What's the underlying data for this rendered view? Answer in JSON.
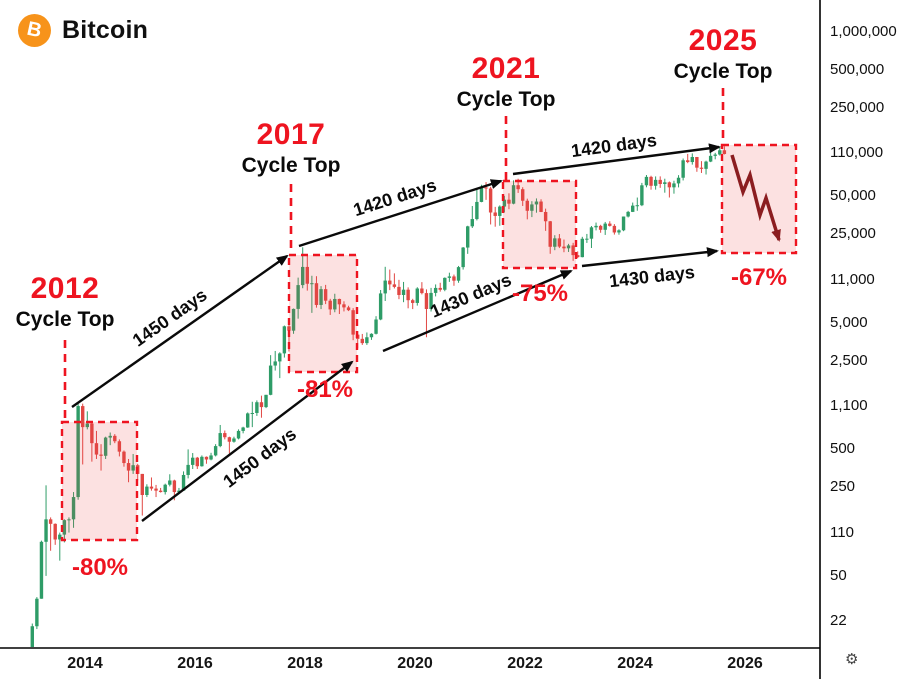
{
  "header": {
    "title": "Bitcoin"
  },
  "icons": {
    "bitcoin_logo_glyph": "B",
    "axis_settings_glyph": "⚙"
  },
  "colors": {
    "bitcoin_orange": "#f7931a",
    "up": "#2e9c67",
    "down": "#e14743",
    "annotation_red": "#ee1420",
    "box_fill": "rgba(239,70,70,0.16)",
    "zigzag": "#8b1d20",
    "axis_text": "#101010"
  },
  "annotations": {
    "cycles": [
      {
        "year": "2012",
        "label": "Cycle Top",
        "drawdown": "-80%"
      },
      {
        "year": "2017",
        "label": "Cycle Top",
        "drawdown": "-81%"
      },
      {
        "year": "2021",
        "label": "Cycle Top",
        "drawdown": "-75%"
      },
      {
        "year": "2025",
        "label": "Cycle Top",
        "drawdown": "-67%"
      }
    ],
    "top_spans": [
      "1450 days",
      "1420 days",
      "1420 days"
    ],
    "bottom_spans": [
      "1450 days",
      "1430 days",
      "1430 days"
    ]
  },
  "y_axis": {
    "labels": [
      "1,000,000",
      "500,000",
      "250,000",
      "110,000",
      "50,000",
      "25,000",
      "11,000",
      "5,000",
      "2,500",
      "1,100",
      "500",
      "250",
      "110",
      "50",
      "22"
    ]
  },
  "x_axis": {
    "labels": [
      "2014",
      "2016",
      "2018",
      "2020",
      "2022",
      "2024",
      "2026"
    ]
  },
  "chart_data": {
    "type": "candlestick",
    "title": "Bitcoin",
    "price_scale": "logarithmic",
    "interval": "monthly",
    "start_year": 2013,
    "x_tick_years": [
      2014,
      2016,
      2018,
      2020,
      2022,
      2024,
      2026
    ],
    "y_tick_prices": [
      22,
      50,
      110,
      250,
      500,
      1100,
      2500,
      5000,
      11000,
      25000,
      50000,
      110000,
      250000,
      500000,
      1000000
    ],
    "cycle_analysis": {
      "tops": [
        "2012",
        "2017",
        "2021",
        "2025"
      ],
      "drawdowns_pct": [
        -80,
        -81,
        -75,
        -67
      ],
      "top_to_top_days": [
        1450,
        1420,
        1420
      ],
      "bottom_to_bottom_days": [
        1450,
        1430,
        1430
      ]
    },
    "candles": [
      [
        13,
        21,
        13,
        20
      ],
      [
        20,
        34,
        19,
        33
      ],
      [
        33,
        95,
        33,
        93
      ],
      [
        93,
        260,
        50,
        140
      ],
      [
        140,
        145,
        79,
        129
      ],
      [
        129,
        130,
        88,
        97
      ],
      [
        97,
        110,
        66,
        106
      ],
      [
        106,
        140,
        92,
        138
      ],
      [
        138,
        145,
        110,
        140
      ],
      [
        140,
        230,
        120,
        210
      ],
      [
        210,
        1150,
        200,
        1100
      ],
      [
        1100,
        1150,
        380,
        750
      ],
      [
        750,
        1000,
        720,
        800
      ],
      [
        800,
        830,
        400,
        560
      ],
      [
        560,
        700,
        420,
        455
      ],
      [
        455,
        550,
        340,
        445
      ],
      [
        445,
        630,
        420,
        620
      ],
      [
        620,
        680,
        540,
        640
      ],
      [
        640,
        660,
        560,
        580
      ],
      [
        580,
        600,
        440,
        480
      ],
      [
        480,
        490,
        365,
        390
      ],
      [
        390,
        420,
        275,
        340
      ],
      [
        340,
        460,
        320,
        375
      ],
      [
        375,
        385,
        285,
        320
      ],
      [
        320,
        320,
        150,
        218
      ],
      [
        218,
        265,
        210,
        254
      ],
      [
        254,
        300,
        236,
        245
      ],
      [
        245,
        262,
        210,
        236
      ],
      [
        236,
        248,
        228,
        230
      ],
      [
        230,
        268,
        220,
        263
      ],
      [
        263,
        318,
        255,
        284
      ],
      [
        284,
        288,
        198,
        230
      ],
      [
        230,
        248,
        222,
        236
      ],
      [
        236,
        335,
        235,
        314
      ],
      [
        314,
        500,
        295,
        377
      ],
      [
        377,
        468,
        350,
        430
      ],
      [
        430,
        436,
        350,
        368
      ],
      [
        368,
        448,
        365,
        437
      ],
      [
        437,
        440,
        385,
        416
      ],
      [
        416,
        470,
        410,
        448
      ],
      [
        448,
        550,
        440,
        531
      ],
      [
        531,
        780,
        520,
        673
      ],
      [
        673,
        705,
        600,
        624
      ],
      [
        624,
        630,
        465,
        575
      ],
      [
        575,
        630,
        565,
        610
      ],
      [
        610,
        720,
        600,
        700
      ],
      [
        700,
        755,
        670,
        745
      ],
      [
        745,
        980,
        740,
        963
      ],
      [
        963,
        1190,
        750,
        970
      ],
      [
        970,
        1220,
        920,
        1180
      ],
      [
        1180,
        1330,
        890,
        1080
      ],
      [
        1080,
        1350,
        1060,
        1350
      ],
      [
        1350,
        2780,
        1340,
        2300
      ],
      [
        2300,
        3000,
        2100,
        2480
      ],
      [
        2480,
        2930,
        1830,
        2870
      ],
      [
        2870,
        4765,
        2660,
        4700
      ],
      [
        4700,
        4980,
        2970,
        4340
      ],
      [
        4340,
        6500,
        4100,
        6450
      ],
      [
        6450,
        11400,
        5400,
        9950
      ],
      [
        9950,
        19800,
        9400,
        13850
      ],
      [
        13850,
        17200,
        9000,
        10200
      ],
      [
        10200,
        11790,
        6000,
        10300
      ],
      [
        10300,
        11700,
        6600,
        6930
      ],
      [
        6930,
        9760,
        6430,
        9240
      ],
      [
        9240,
        9990,
        7040,
        7490
      ],
      [
        7490,
        7750,
        5780,
        6390
      ],
      [
        6390,
        8500,
        6070,
        7730
      ],
      [
        7730,
        7770,
        5880,
        7010
      ],
      [
        7010,
        7410,
        6160,
        6630
      ],
      [
        6630,
        6830,
        6200,
        6300
      ],
      [
        6300,
        6540,
        3650,
        4040
      ],
      [
        4040,
        4300,
        3150,
        3740
      ],
      [
        3740,
        4090,
        3350,
        3460
      ],
      [
        3460,
        4200,
        3350,
        3850
      ],
      [
        3850,
        4140,
        3670,
        4100
      ],
      [
        4100,
        5650,
        4050,
        5320
      ],
      [
        5320,
        9100,
        5250,
        8550
      ],
      [
        8550,
        13880,
        7450,
        10800
      ],
      [
        10800,
        13200,
        9080,
        10080
      ],
      [
        10080,
        12320,
        9360,
        9630
      ],
      [
        9630,
        10950,
        7700,
        8310
      ],
      [
        8310,
        10540,
        7290,
        9150
      ],
      [
        9150,
        9550,
        6520,
        7560
      ],
      [
        7560,
        7750,
        6430,
        7190
      ],
      [
        7190,
        9570,
        6850,
        9350
      ],
      [
        9350,
        10500,
        8400,
        8600
      ],
      [
        8600,
        9200,
        3850,
        6440
      ],
      [
        6440,
        9460,
        6150,
        8630
      ],
      [
        8630,
        10070,
        8100,
        9450
      ],
      [
        9450,
        10380,
        8830,
        9140
      ],
      [
        9140,
        11450,
        8900,
        11350
      ],
      [
        11350,
        12470,
        10550,
        11650
      ],
      [
        11650,
        12050,
        9825,
        10780
      ],
      [
        10780,
        14100,
        10380,
        13800
      ],
      [
        13800,
        19900,
        13200,
        19700
      ],
      [
        19700,
        29300,
        17570,
        29000
      ],
      [
        29000,
        42000,
        28130,
        33100
      ],
      [
        33100,
        58350,
        32300,
        45200
      ],
      [
        45200,
        61800,
        44950,
        58800
      ],
      [
        58800,
        64900,
        46930,
        57750
      ],
      [
        57750,
        59500,
        30000,
        37300
      ],
      [
        37300,
        41330,
        28800,
        35040
      ],
      [
        35040,
        42450,
        29300,
        41550
      ],
      [
        41550,
        50500,
        37330,
        47100
      ],
      [
        47100,
        52920,
        39600,
        43800
      ],
      [
        43800,
        66970,
        43290,
        61300
      ],
      [
        61300,
        69000,
        53260,
        57000
      ],
      [
        57000,
        59100,
        42000,
        46200
      ],
      [
        46200,
        47990,
        32930,
        38480
      ],
      [
        38480,
        45820,
        34300,
        43200
      ],
      [
        43200,
        48190,
        37160,
        45540
      ],
      [
        45540,
        47440,
        37580,
        37650
      ],
      [
        37650,
        40020,
        26700,
        31800
      ],
      [
        31800,
        31980,
        17590,
        19985
      ],
      [
        19985,
        24670,
        18780,
        23300
      ],
      [
        23300,
        25200,
        19520,
        20050
      ],
      [
        20050,
        22800,
        18100,
        19430
      ],
      [
        19430,
        21080,
        18190,
        20490
      ],
      [
        20490,
        21480,
        15480,
        17170
      ],
      [
        17170,
        18370,
        16260,
        16550
      ],
      [
        16550,
        23960,
        16490,
        23130
      ],
      [
        23130,
        25250,
        21440,
        23150
      ],
      [
        23150,
        29180,
        19550,
        28480
      ],
      [
        28480,
        31050,
        26940,
        29250
      ],
      [
        29250,
        29820,
        25800,
        27220
      ],
      [
        27220,
        31400,
        24800,
        30470
      ],
      [
        30470,
        31800,
        28860,
        29230
      ],
      [
        29230,
        30180,
        24950,
        25930
      ],
      [
        25930,
        27480,
        24900,
        26970
      ],
      [
        26970,
        34700,
        26540,
        34660
      ],
      [
        34660,
        38420,
        34080,
        37720
      ],
      [
        37720,
        44700,
        37610,
        42270
      ],
      [
        42270,
        48970,
        38500,
        42580
      ],
      [
        42580,
        63930,
        41880,
        61200
      ],
      [
        61200,
        73790,
        59000,
        71330
      ],
      [
        71330,
        72800,
        56500,
        60640
      ],
      [
        60640,
        71950,
        56550,
        67540
      ],
      [
        67540,
        71990,
        58400,
        62680
      ],
      [
        62680,
        69000,
        53500,
        64620
      ],
      [
        64620,
        65600,
        49000,
        58970
      ],
      [
        58970,
        66500,
        52550,
        63330
      ],
      [
        63330,
        73620,
        58900,
        70220
      ],
      [
        70220,
        99660,
        66840,
        96450
      ],
      [
        96450,
        108360,
        91530,
        93430
      ],
      [
        93430,
        109360,
        89160,
        102400
      ],
      [
        102400,
        102500,
        78260,
        84350
      ],
      [
        84350,
        95000,
        76600,
        82550
      ],
      [
        82550,
        95770,
        74500,
        94210
      ],
      [
        94210,
        112000,
        93300,
        104600
      ],
      [
        104600,
        110530,
        98200,
        107100
      ],
      [
        107100,
        123230,
        105100,
        115800
      ],
      [
        115800,
        124500,
        107300,
        108200
      ]
    ]
  }
}
